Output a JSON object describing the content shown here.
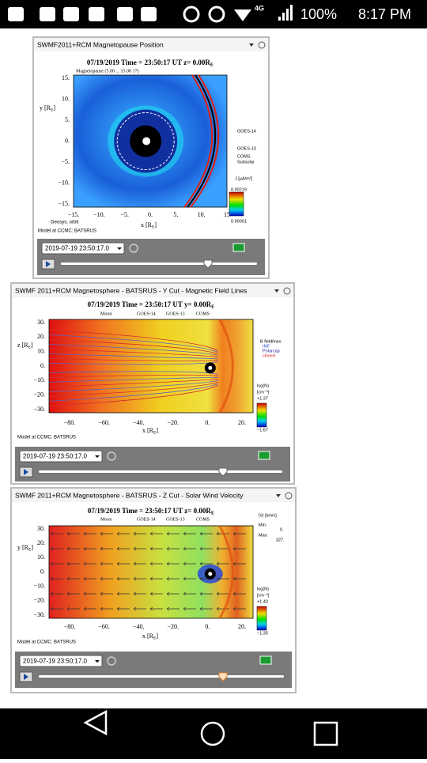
{
  "status_bar": {
    "network": "4G",
    "battery": "100%",
    "time": "8:17 PM"
  },
  "panels": [
    {
      "title": "SWMF2011+RCM Magnetopause Position",
      "plot_title": [
        "07/19/2019 Time = 23:50:17 UT z= 0.00R",
        "E"
      ],
      "legend": [
        "Magnetopause (5.00 ... 15.00 17)"
      ],
      "y_label": [
        "y [R",
        "E",
        "]"
      ],
      "x_label": [
        "x [R",
        "E",
        "]"
      ],
      "y_ticks": [
        "15.",
        "10.",
        "5.",
        "0.",
        "−5.",
        "−10.",
        "−15."
      ],
      "x_ticks": [
        "−15.",
        "−10.",
        "−5.",
        "0.",
        "5.",
        "10.",
        "15"
      ],
      "side_labels": [
        "GOES-14",
        "GOES-13",
        "COMS",
        "Subsolar"
      ],
      "colorbar": [
        "J [µA/m²]",
        "0.00219",
        "0.00001"
      ],
      "footer": [
        "Geosys. orbit",
        "Model at CCMC: BATSRUS"
      ],
      "time_select": "2019-07-19 23:50:17.0"
    },
    {
      "title": "SWMF 2011+RCM Magnetosphere - BATSRUS - Y Cut - Magnetic Field Lines",
      "plot_title": [
        "07/19/2019 Time = 23:50:17 UT y= 0.00R",
        "E"
      ],
      "legend": [
        "Moon",
        "GOES-14",
        "GOES-13",
        "COMS"
      ],
      "y_label": [
        "z [R",
        "E",
        "]"
      ],
      "x_label": [
        "x [R",
        "E",
        "]"
      ],
      "y_ticks": [
        "30.",
        "20.",
        "10.",
        "0.",
        "−10.",
        "−20.",
        "−30."
      ],
      "x_ticks": [
        "−80.",
        "−60.",
        "−40.",
        "−20.",
        "0.",
        "20."
      ],
      "side_labels": [
        "B fieldlines",
        "IMF",
        "Polarcap",
        "closed"
      ],
      "colorbar": [
        "log(N)",
        "[cm⁻³]",
        "+1.37",
        "−1.67"
      ],
      "footer": [
        "Model at CCMC: BATSRUS"
      ],
      "time_select": "2019-07-19 23:50:17.0"
    },
    {
      "title": "SWMF 2011+RCM Magnetosphere - BATSRUS - Z Cut - Solar Wind Velocity",
      "plot_title": [
        "07/19/2019 Time = 23:50:17 UT z= 0.00R",
        "E"
      ],
      "legend": [
        "Moon",
        "GOES-14",
        "GOES-13",
        "COMS"
      ],
      "y_label": [
        "y [R",
        "E",
        "]"
      ],
      "x_label": [
        "x [R",
        "E",
        "]"
      ],
      "y_ticks": [
        "30.",
        "20.",
        "10.",
        "0.",
        "−10.",
        "−20.",
        "−30."
      ],
      "x_ticks": [
        "−80.",
        "−60.",
        "−40.",
        "−20.",
        "0.",
        "20."
      ],
      "side_labels": [
        "|V| [km/s]",
        "Min:",
        "0.",
        "Max:",
        "327."
      ],
      "colorbar": [
        "log(N)",
        "[cm⁻³]",
        "+1.40",
        "−1.35"
      ],
      "footer": [
        "Model at CCMC: BATSRUS"
      ],
      "time_select": "2019-07-19 23:50:17.0"
    }
  ]
}
